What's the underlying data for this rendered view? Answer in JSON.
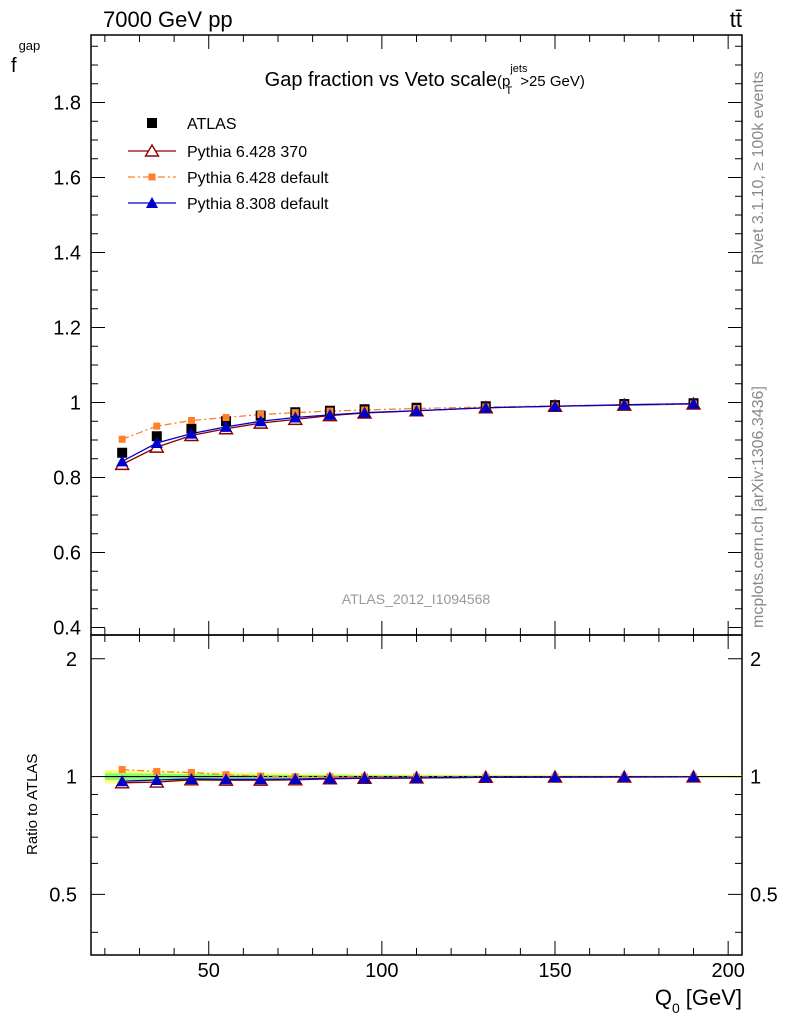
{
  "header": {
    "energy_label": "7000 GeV pp",
    "process_label": "tt̄"
  },
  "side_labels": {
    "rivet": "Rivet 3.1.10, ≥ 100k events",
    "mcplots": "mcplots.cern.ch [arXiv:1306.3436]"
  },
  "watermark": "ATLAS_2012_I1094568",
  "colors": {
    "atlas": "#000000",
    "p6_370": "#8b0000",
    "p6_default": "#ff7f2a",
    "p8_default": "#0000cc",
    "band_outer": "#ffff66",
    "band_inner": "#66ff66"
  },
  "chart_data": [
    {
      "type": "scatter",
      "title": "Gap fraction vs Veto scale",
      "title_cut": {
        "pre": "(p",
        "sup": "jets",
        "sub": "T",
        "post": ">25 GeV)"
      },
      "ylabel": "f",
      "ylabel_sub": "gap",
      "xlim": [
        16,
        204
      ],
      "ylim": [
        0.38,
        1.98
      ],
      "yticks": [
        0.4,
        0.6,
        0.8,
        1,
        1.2,
        1.4,
        1.6,
        1.8
      ],
      "ytick_labels": [
        "0.4",
        "0.6",
        "0.8",
        "1",
        "1.2",
        "1.4",
        "1.6",
        "1.8"
      ],
      "legend_position": "top-left",
      "x": [
        25,
        35,
        45,
        55,
        65,
        75,
        85,
        95,
        110,
        130,
        150,
        170,
        190
      ],
      "series": [
        {
          "name": "ATLAS",
          "marker": "square",
          "line": "none",
          "values": [
            0.866,
            0.91,
            0.93,
            0.95,
            0.965,
            0.974,
            0.978,
            0.982,
            0.986,
            0.99,
            0.993,
            0.996,
            0.998
          ]
        },
        {
          "name": "Pythia 6.428 370",
          "marker": "triangle-open",
          "line": "solid",
          "values": [
            0.835,
            0.881,
            0.912,
            0.93,
            0.945,
            0.955,
            0.965,
            0.972,
            0.978,
            0.986,
            0.99,
            0.993,
            0.996
          ]
        },
        {
          "name": "Pythia 6.428 default",
          "marker": "square-small",
          "line": "dashdot",
          "values": [
            0.902,
            0.937,
            0.952,
            0.96,
            0.968,
            0.973,
            0.977,
            0.98,
            0.984,
            0.988,
            0.991,
            0.994,
            0.996
          ]
        },
        {
          "name": "Pythia 8.308 default",
          "marker": "triangle",
          "line": "solid",
          "values": [
            0.843,
            0.892,
            0.917,
            0.935,
            0.95,
            0.96,
            0.967,
            0.973,
            0.978,
            0.986,
            0.99,
            0.994,
            0.997
          ]
        }
      ]
    },
    {
      "type": "scatter",
      "ylabel": "Ratio to ATLAS",
      "xlabel": "Q",
      "xlabel_sub": "0",
      "xlabel_unit": "[GeV]",
      "xlim": [
        16,
        204
      ],
      "ylim": [
        0.35,
        2.3
      ],
      "yscale": "log",
      "xticks": [
        50,
        100,
        150,
        200
      ],
      "xtick_labels": [
        "50",
        "100",
        "150",
        "200"
      ],
      "yticks": [
        0.5,
        1,
        2
      ],
      "ytick_labels": [
        "0.5",
        "1",
        "2"
      ],
      "x": [
        25,
        35,
        45,
        55,
        65,
        75,
        85,
        95,
        110,
        130,
        150,
        170,
        190
      ],
      "series": [
        {
          "name": "Pythia 6.428 370",
          "marker": "triangle-open",
          "line": "solid",
          "values": [
            0.964,
            0.968,
            0.981,
            0.979,
            0.979,
            0.981,
            0.987,
            0.99,
            0.992,
            0.996,
            0.997,
            0.997,
            0.998
          ]
        },
        {
          "name": "Pythia 6.428 default",
          "marker": "square-small",
          "line": "dashdot",
          "values": [
            1.042,
            1.03,
            1.024,
            1.011,
            1.003,
            0.999,
            0.999,
            0.998,
            0.998,
            0.998,
            0.998,
            0.998,
            0.998
          ]
        },
        {
          "name": "Pythia 8.308 default",
          "marker": "triangle",
          "line": "solid",
          "values": [
            0.973,
            0.98,
            0.986,
            0.984,
            0.984,
            0.986,
            0.989,
            0.991,
            0.992,
            0.996,
            0.997,
            0.998,
            0.999
          ]
        }
      ],
      "uncertainty_band": {
        "outer": [
          0.04,
          0.035,
          0.03,
          0.025,
          0.022,
          0.02,
          0.018,
          0.016,
          0.014,
          0.012,
          0.01,
          0.008,
          0.006
        ],
        "inner": [
          0.02,
          0.018,
          0.015,
          0.013,
          0.011,
          0.01,
          0.009,
          0.008,
          0.007,
          0.006,
          0.005,
          0.004,
          0.003
        ]
      }
    }
  ]
}
